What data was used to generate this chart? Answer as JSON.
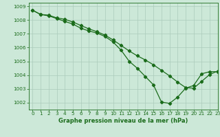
{
  "line1_x": [
    0,
    1,
    2,
    3,
    4,
    5,
    6,
    7,
    8,
    9,
    10,
    11,
    12,
    13,
    14,
    15,
    16,
    17,
    18,
    19,
    20,
    21,
    22,
    23
  ],
  "line1_y": [
    1008.7,
    1008.4,
    1008.3,
    1008.1,
    1007.9,
    1007.7,
    1007.4,
    1007.2,
    1007.05,
    1006.8,
    1006.4,
    1005.8,
    1005.0,
    1004.5,
    1003.9,
    1003.3,
    1002.05,
    1001.95,
    1002.4,
    1003.05,
    1003.25,
    1004.1,
    1004.25,
    1004.25
  ],
  "line2_x": [
    0,
    1,
    2,
    3,
    4,
    5,
    6,
    7,
    8,
    9,
    10,
    11,
    12,
    13,
    14,
    15,
    16,
    17,
    18,
    19,
    20,
    21,
    22,
    23
  ],
  "line2_y": [
    1008.7,
    1008.4,
    1008.35,
    1008.15,
    1008.05,
    1007.85,
    1007.6,
    1007.35,
    1007.15,
    1006.9,
    1006.55,
    1006.15,
    1005.75,
    1005.4,
    1005.1,
    1004.75,
    1004.35,
    1003.95,
    1003.5,
    1003.1,
    1003.05,
    1003.55,
    1004.05,
    1004.3
  ],
  "line_color": "#1a6b1a",
  "bg_color": "#cce8d8",
  "grid_color": "#aacbba",
  "xlabel": "Graphe pression niveau de la mer (hPa)",
  "ylim": [
    1001.5,
    1009.25
  ],
  "xlim": [
    -0.5,
    23
  ],
  "yticks": [
    1002,
    1003,
    1004,
    1005,
    1006,
    1007,
    1008,
    1009
  ],
  "xticks": [
    0,
    1,
    2,
    3,
    4,
    5,
    6,
    7,
    8,
    9,
    10,
    11,
    12,
    13,
    14,
    15,
    16,
    17,
    18,
    19,
    20,
    21,
    22,
    23
  ],
  "xlabel_fontsize": 6.0,
  "tick_fontsize": 5.2,
  "line_width": 0.9,
  "marker_size": 2.2
}
